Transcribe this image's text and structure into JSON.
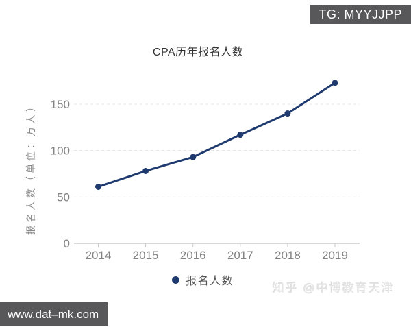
{
  "badges": {
    "tg": {
      "text": "TG: MYYJJPP",
      "bg": "#58585a",
      "text_color": "#ffffff"
    },
    "site": {
      "text": "www.dat–mk.com",
      "bg": "#58585a",
      "text_color": "#ffffff"
    }
  },
  "watermark": {
    "text": "知乎 @中博教育天津",
    "color": "#e4e4e4"
  },
  "legend": {
    "label": "报名人数",
    "dot_color": "#1e3a6e"
  },
  "chart_data": {
    "type": "line",
    "title": "CPA历年报名人数",
    "categories": [
      "2014",
      "2015",
      "2016",
      "2017",
      "2018",
      "2019"
    ],
    "series": [
      {
        "name": "报名人数",
        "values": [
          61,
          78,
          93,
          117,
          140,
          173
        ]
      }
    ],
    "xlabel": "",
    "ylabel": "报名人数（单位：万人）",
    "yticks": [
      0,
      50,
      100,
      150
    ],
    "ylim": [
      0,
      150
    ],
    "grid": "horizontal dashed at 50/100/150, no vertical axis line",
    "legend_position": "bottom-center",
    "colors": {
      "line": "#1e3a6e",
      "point": "#1e3a6e",
      "grid": "#e3e3e3",
      "axis": "#c9c9c9",
      "tick_text": "#828282",
      "title_text": "#333333"
    }
  }
}
